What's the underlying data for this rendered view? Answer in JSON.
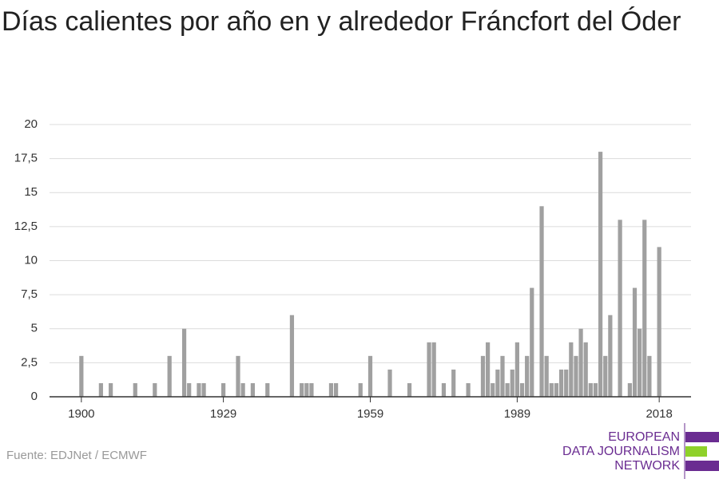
{
  "chart_data": {
    "type": "bar",
    "title": "Días calientes por año en y alrededor Fráncfort del Óder",
    "source": "Fuente: EDJNet / ECMWF",
    "logo": [
      "EUROPEAN",
      "DATA JOURNALISM",
      "NETWORK"
    ],
    "color": "#a0a0a0",
    "grid": true,
    "x": [
      1900,
      1901,
      1902,
      1903,
      1904,
      1905,
      1906,
      1907,
      1908,
      1909,
      1910,
      1911,
      1912,
      1913,
      1914,
      1915,
      1916,
      1917,
      1918,
      1919,
      1920,
      1921,
      1922,
      1923,
      1924,
      1925,
      1926,
      1927,
      1928,
      1929,
      1930,
      1931,
      1932,
      1933,
      1934,
      1935,
      1936,
      1937,
      1938,
      1939,
      1940,
      1941,
      1942,
      1943,
      1944,
      1945,
      1946,
      1947,
      1948,
      1949,
      1950,
      1951,
      1952,
      1953,
      1954,
      1955,
      1956,
      1957,
      1958,
      1959,
      1960,
      1961,
      1962,
      1963,
      1964,
      1965,
      1966,
      1967,
      1968,
      1969,
      1970,
      1971,
      1972,
      1973,
      1974,
      1975,
      1976,
      1977,
      1978,
      1979,
      1980,
      1981,
      1982,
      1983,
      1984,
      1985,
      1986,
      1987,
      1988,
      1989,
      1990,
      1991,
      1992,
      1993,
      1994,
      1995,
      1996,
      1997,
      1998,
      1999,
      2000,
      2001,
      2002,
      2003,
      2004,
      2005,
      2006,
      2007,
      2008,
      2009,
      2010,
      2011,
      2012,
      2013,
      2014,
      2015,
      2016,
      2017,
      2018
    ],
    "values": [
      3,
      0,
      0,
      0,
      1,
      0,
      1,
      0,
      0,
      0,
      0,
      1,
      0,
      0,
      0,
      1,
      0,
      0,
      3,
      0,
      0,
      5,
      1,
      0,
      1,
      1,
      0,
      0,
      0,
      1,
      0,
      0,
      3,
      1,
      0,
      1,
      0,
      0,
      1,
      0,
      0,
      0,
      0,
      6,
      0,
      1,
      1,
      1,
      0,
      0,
      0,
      1,
      1,
      0,
      0,
      0,
      0,
      1,
      0,
      3,
      0,
      0,
      0,
      2,
      0,
      0,
      0,
      1,
      0,
      0,
      0,
      4,
      4,
      0,
      1,
      0,
      2,
      0,
      0,
      1,
      0,
      0,
      3,
      4,
      1,
      2,
      3,
      1,
      2,
      4,
      1,
      3,
      8,
      0,
      14,
      3,
      1,
      1,
      2,
      2,
      4,
      3,
      5,
      4,
      1,
      1,
      18,
      3,
      6,
      0,
      13,
      0,
      1,
      8,
      5,
      13,
      3,
      0,
      11
    ],
    "xlim": [
      1893.5,
      2024.5
    ],
    "xticks": [
      1900,
      1929,
      1959,
      1989,
      2018
    ],
    "ylim": [
      0,
      20
    ],
    "yticks": [
      0,
      {
        "value": 2.5,
        "label": "2,5"
      },
      5,
      {
        "value": 7.5,
        "label": "7,5"
      },
      10,
      {
        "value": 12.5,
        "label": "12,5"
      },
      15,
      {
        "value": 17.5,
        "label": "17,5"
      },
      20
    ]
  }
}
